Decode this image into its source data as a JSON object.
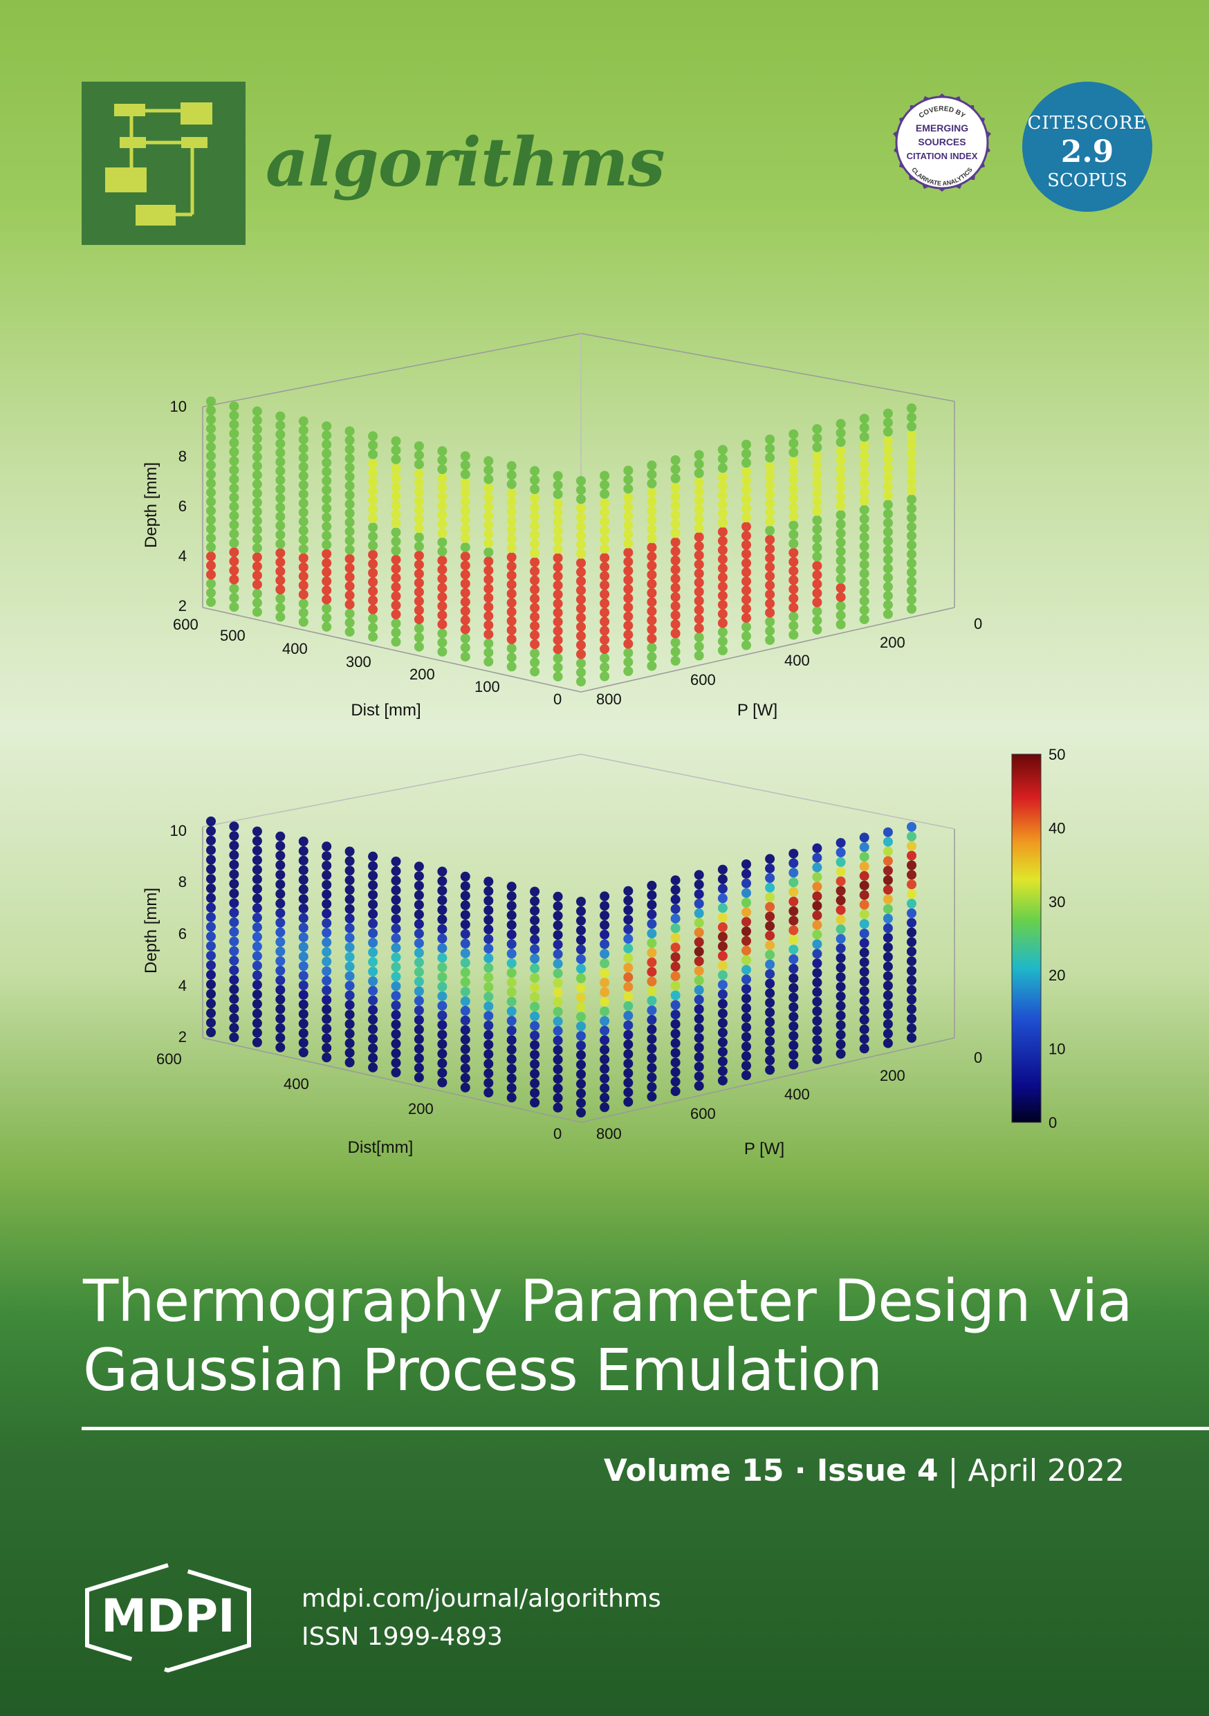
{
  "journal": {
    "name": "algorithms"
  },
  "badges": {
    "esci_top": "COVERED BY",
    "esci_lines": [
      "EMERGING",
      "SOURCES",
      "CITATION INDEX"
    ],
    "esci_bottom": "CLARIVATE ANALYTICS",
    "citescore_label": "CITESCORE",
    "citescore_value": "2.9",
    "citescore_source": "SCOPUS"
  },
  "article": {
    "title_line1": "Thermography Parameter Design via",
    "title_line2": "Gaussian Process Emulation"
  },
  "issue": {
    "volume": "Volume 15",
    "issue": "Issue 4",
    "date": "April 2022"
  },
  "publisher": {
    "name": "MDPI",
    "url": "mdpi.com/journal/algorithms",
    "issn": "ISSN 1999-4893"
  },
  "chart_data": [
    {
      "type": "scatter",
      "title": "",
      "zlabel": "Depth [mm]",
      "xlabel": "Dist [mm]",
      "ylabel": "P [W]",
      "z_ticks": [
        "2",
        "4",
        "6",
        "8",
        "10"
      ],
      "x_ticks": [
        "600",
        "500",
        "400",
        "300",
        "200",
        "100",
        "0"
      ],
      "y_ticks": [
        "800",
        "600",
        "400",
        "200",
        "0"
      ],
      "zlim": [
        2,
        10
      ],
      "xlim": [
        0,
        600
      ],
      "ylim": [
        0,
        800
      ],
      "colors": {
        "red": "#e03a2a",
        "green": "#6cc046",
        "yellow": "#d8e834"
      }
    },
    {
      "type": "scatter",
      "title": "",
      "zlabel": "Depth [mm]",
      "xlabel": "Dist[mm]",
      "ylabel": "P [W]",
      "z_ticks": [
        "2",
        "4",
        "6",
        "8",
        "10"
      ],
      "x_ticks": [
        "600",
        "400",
        "200",
        "0"
      ],
      "y_ticks": [
        "800",
        "600",
        "400",
        "200",
        "0"
      ],
      "zlim": [
        2,
        10
      ],
      "xlim": [
        0,
        600
      ],
      "ylim": [
        0,
        800
      ],
      "colorbar_ticks": [
        "0",
        "10",
        "20",
        "30",
        "40",
        "50"
      ],
      "colorbar_range": [
        0,
        50
      ]
    }
  ]
}
